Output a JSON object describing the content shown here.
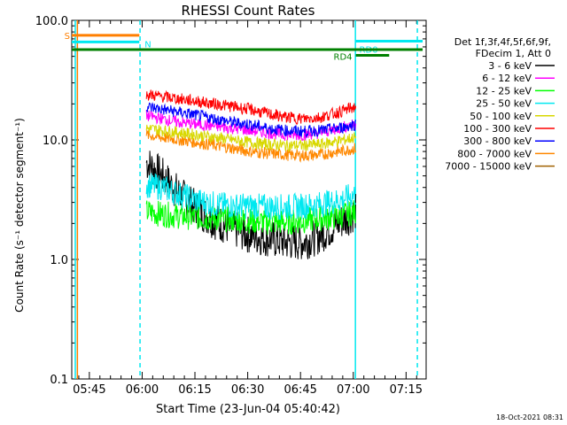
{
  "chart_data": {
    "type": "line",
    "title": "RHESSI Count Rates",
    "xlabel": "Start Time (23-Jun-04 05:40:42)",
    "ylabel": "Count Rate (s⁻¹ detector segment⁻¹)",
    "ylog": true,
    "ylim": [
      0.1,
      100
    ],
    "xlim_minutes": [
      -0.7,
      100
    ],
    "x_tick_labels": [
      "05:45",
      "06:00",
      "06:15",
      "06:30",
      "06:45",
      "07:00",
      "07:15"
    ],
    "x_tick_minutes": [
      4.3,
      19.3,
      34.3,
      49.3,
      64.3,
      79.3,
      94.3
    ],
    "y_tick_labels": [
      "0.1",
      "1.0",
      "10.0",
      "100.0"
    ],
    "y_tick_values": [
      0.1,
      1,
      10,
      100
    ],
    "legend_header": [
      "Det 1f,3f,4f,5f,6f,9f,",
      "FDecim 1, Att 0"
    ],
    "legend_position": "right",
    "timestamp": "18-Oct-2021 08:31",
    "series": [
      {
        "name": "3 - 6 keV",
        "color": "#000000",
        "x": [
          20.5,
          25,
          30,
          35,
          40,
          45,
          50,
          55,
          60,
          65,
          70,
          75,
          80
        ],
        "y": [
          6.5,
          5.0,
          3.5,
          2.6,
          2.1,
          1.8,
          1.6,
          1.5,
          1.4,
          1.4,
          1.6,
          2.0,
          2.5
        ]
      },
      {
        "name": "6 - 12 keV",
        "color": "#ff00ff",
        "x": [
          20.5,
          25,
          30,
          35,
          40,
          45,
          50,
          55,
          60,
          65,
          70,
          75,
          80
        ],
        "y": [
          16,
          15,
          14,
          13.5,
          13,
          12.5,
          12,
          11.5,
          11,
          11,
          11.5,
          12.5,
          13.5
        ]
      },
      {
        "name": "12 - 25 keV",
        "color": "#00ff00",
        "x": [
          20.5,
          25,
          30,
          35,
          40,
          45,
          50,
          55,
          60,
          65,
          70,
          75,
          80
        ],
        "y": [
          2.5,
          2.4,
          2.3,
          2.25,
          2.2,
          2.15,
          2.1,
          2.05,
          2.05,
          2.1,
          2.2,
          2.3,
          2.5
        ]
      },
      {
        "name": "25 - 50 keV",
        "color": "#00e8f0",
        "x": [
          20.5,
          25,
          30,
          35,
          40,
          45,
          50,
          55,
          60,
          65,
          70,
          75,
          80
        ],
        "y": [
          4.2,
          4.0,
          3.5,
          3.1,
          2.9,
          2.8,
          2.8,
          2.75,
          2.75,
          2.8,
          2.9,
          3.1,
          3.5
        ]
      },
      {
        "name": "50 - 100 keV",
        "color": "#d8d800",
        "x": [
          20.5,
          25,
          30,
          35,
          40,
          45,
          50,
          55,
          60,
          65,
          70,
          75,
          80
        ],
        "y": [
          12.5,
          12,
          11.5,
          11,
          10.5,
          10,
          9.5,
          9.2,
          9,
          9,
          9.2,
          9.8,
          10.5
        ]
      },
      {
        "name": "100 - 300 keV",
        "color": "#ff0000",
        "x": [
          20.5,
          25,
          30,
          35,
          40,
          45,
          50,
          55,
          60,
          65,
          70,
          75,
          80
        ],
        "y": [
          24,
          23,
          22,
          21,
          20,
          19,
          18,
          16.5,
          15.5,
          15,
          15.5,
          17,
          19
        ]
      },
      {
        "name": "300 - 800 keV",
        "color": "#0000ff",
        "x": [
          20.5,
          25,
          30,
          35,
          40,
          45,
          50,
          55,
          60,
          65,
          70,
          75,
          80
        ],
        "y": [
          19,
          18,
          17,
          16,
          15,
          14,
          13.5,
          12.5,
          12,
          11.8,
          12,
          12.5,
          13.5
        ]
      },
      {
        "name": "800 - 7000 keV",
        "color": "#ff8800",
        "x": [
          20.5,
          25,
          30,
          35,
          40,
          45,
          50,
          55,
          60,
          65,
          70,
          75,
          80
        ],
        "y": [
          11,
          10.5,
          10,
          9.5,
          9,
          8.5,
          8.0,
          7.7,
          7.5,
          7.4,
          7.5,
          8.0,
          8.5
        ]
      },
      {
        "name": "7000 - 15000 keV",
        "color": "#a06000",
        "x": [],
        "y": []
      }
    ],
    "attenuator_bars": [
      {
        "label": "S",
        "color": "#ff7f00",
        "x": [
          -0.7,
          18.5
        ],
        "y": 75
      },
      {
        "label": "N",
        "color": "#00e8f0",
        "x": [
          -0.7,
          18.5
        ],
        "y": 66
      },
      {
        "label": "RD0",
        "color": "#00e8f0",
        "x": [
          80.0,
          99.0
        ],
        "y": 67
      },
      {
        "label": "",
        "color": "#008000",
        "x": [
          -0.7,
          99.0
        ],
        "y": 57
      },
      {
        "label": "RD4",
        "color": "#008000",
        "x": [
          80.0,
          89.5
        ],
        "y": 51
      }
    ],
    "vertical_markers": [
      {
        "color": "#00e8f0",
        "style": "solid",
        "x": 0.3
      },
      {
        "color": "#ff7f00",
        "style": "solid",
        "x": 0.9
      },
      {
        "color": "#00e8f0",
        "style": "dashed",
        "x": 18.7
      },
      {
        "color": "#00e8f0",
        "style": "solid",
        "x": 79.9
      },
      {
        "color": "#00e8f0",
        "style": "dashed",
        "x": 97.5
      }
    ]
  }
}
